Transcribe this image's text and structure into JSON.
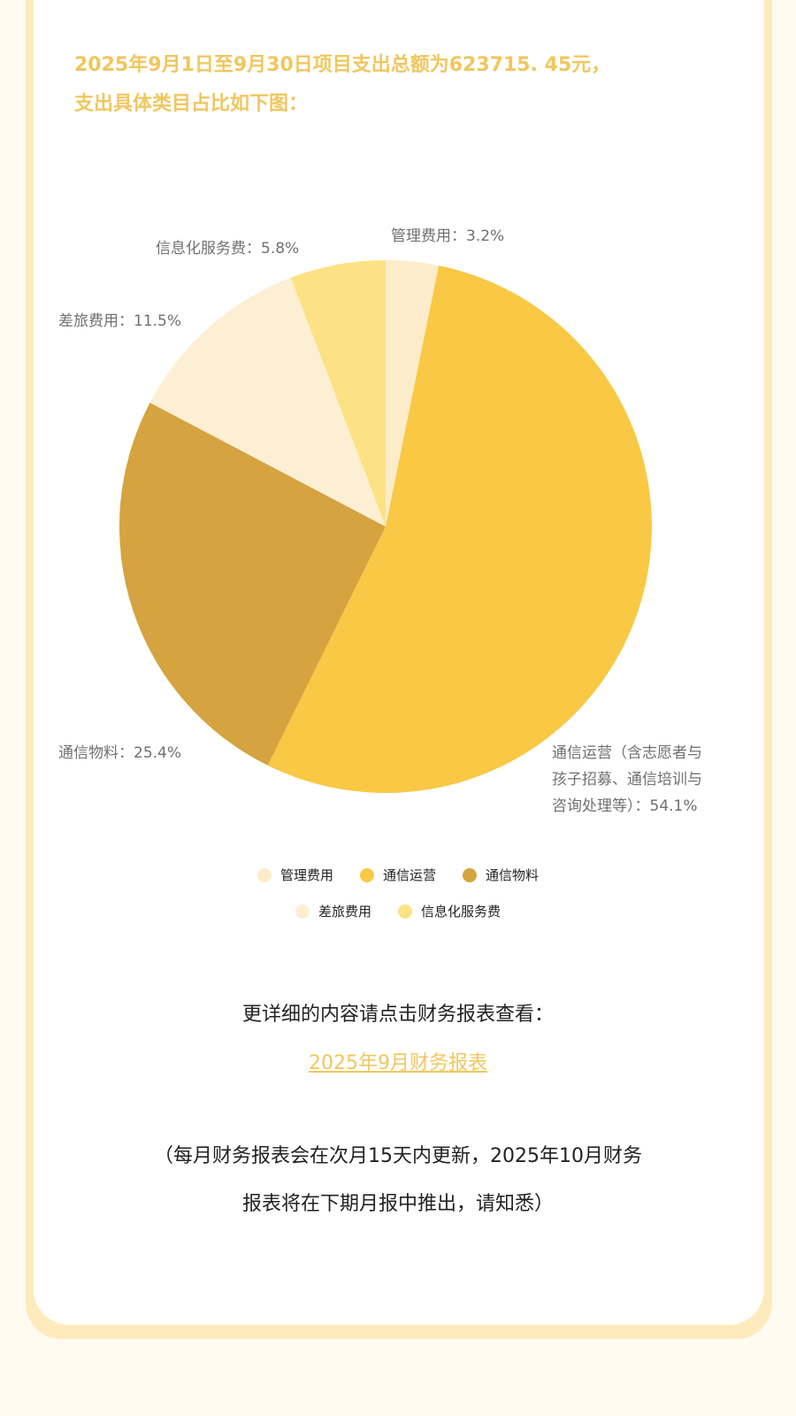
{
  "intro": {
    "line1": "2025年9月1日至9月30日项目支出总额为623715. 45元，",
    "line2": "支出具体类目占比如下图："
  },
  "chart_data": {
    "type": "pie",
    "start": "top",
    "direction": "clockwise",
    "slices": [
      {
        "name": "管理费用",
        "value": 3.2,
        "label": "管理费用：3.2%",
        "color": "#fdecca"
      },
      {
        "name": "通信运营",
        "value": 54.1,
        "label_lines": [
          "通信运营（含志愿者与",
          "孩子招募、通信培训与",
          "咨询处理等）：54.1%"
        ],
        "color": "#f9c844"
      },
      {
        "name": "通信物料",
        "value": 25.4,
        "label": "通信物料：25.4%",
        "color": "#d5a33f"
      },
      {
        "name": "差旅费用",
        "value": 11.5,
        "label": "差旅费用：11.5%",
        "color": "#fdefd3"
      },
      {
        "name": "信息化服务费",
        "value": 5.8,
        "label": "信息化服务费：5.8%",
        "color": "#fce285"
      }
    ],
    "legend": {
      "placement": "bottom",
      "rows": [
        [
          "管理费用",
          "通信运营",
          "通信物料"
        ],
        [
          "差旅费用",
          "信息化服务费"
        ]
      ]
    }
  },
  "footer": {
    "more_text": "更详细的内容请点击财务报表查看：",
    "report_link": "2025年9月财务报表",
    "note_line1": "（每月财务报表会在次月15天内更新，2025年10月财务",
    "note_line2": "报表将在下期月报中推出，请知悉）"
  }
}
